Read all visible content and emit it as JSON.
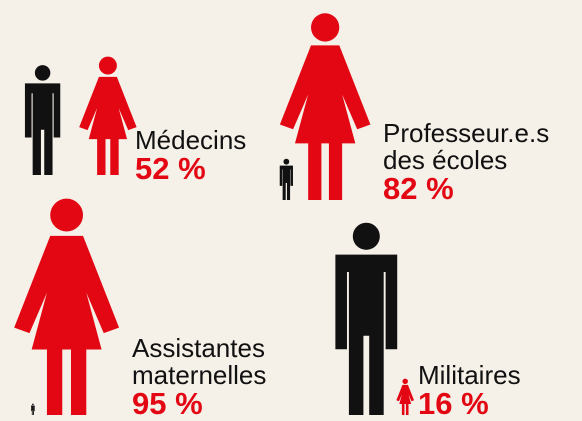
{
  "chart_data": {
    "type": "pictogram",
    "categories": [
      "Médecins",
      "Professeur.e.s des écoles",
      "Assistantes maternelles",
      "Militaires"
    ],
    "values": [
      52,
      82,
      95,
      16
    ],
    "value_labels": [
      "52 %",
      "82 %",
      "95 %",
      "16 %"
    ],
    "women_color": "#e30613",
    "men_color": "#111111"
  }
}
